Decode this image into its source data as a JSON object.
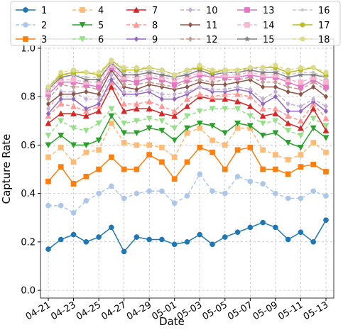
{
  "chart_data": {
    "type": "line",
    "xlabel": "Date",
    "ylabel": "Capture Rate",
    "categories": [
      "04-21",
      null,
      "04-23",
      null,
      "04-25",
      null,
      "04-27",
      null,
      "04-29",
      null,
      "05-01",
      null,
      "05-03",
      null,
      "05-05",
      null,
      "05-07",
      null,
      "05-09",
      null,
      "05-11",
      null,
      "05-13"
    ],
    "ylim": [
      -0.032,
      1.038
    ],
    "yticks": [
      {
        "value": 0,
        "label": "0.0"
      },
      {
        "value": 0.2,
        "label": "0.2"
      },
      {
        "value": 0.4,
        "label": "0.4"
      },
      {
        "value": 0.6,
        "label": "0.6"
      },
      {
        "value": 0.8,
        "label": "0.8"
      },
      {
        "value": 1,
        "label": "1.0"
      }
    ],
    "grid": true,
    "legend": "upper center",
    "series": [
      {
        "name": "1",
        "color": "#1f77b4",
        "marker": "circle",
        "dashed": false,
        "values": [
          0.17,
          0.21,
          0.23,
          0.2,
          0.22,
          0.26,
          0.16,
          0.22,
          0.21,
          0.21,
          0.19,
          0.2,
          0.23,
          0.19,
          0.22,
          0.24,
          0.26,
          0.28,
          0.26,
          0.21,
          0.24,
          0.2,
          0.29
        ]
      },
      {
        "name": "2",
        "color": "#aec7e8",
        "marker": "circle",
        "dashed": true,
        "values": [
          0.35,
          0.35,
          0.32,
          0.37,
          0.4,
          0.43,
          0.38,
          0.4,
          0.41,
          0.41,
          0.36,
          0.39,
          0.48,
          0.41,
          0.4,
          0.47,
          0.45,
          0.44,
          0.4,
          0.38,
          0.38,
          0.41,
          0.39
        ]
      },
      {
        "name": "3",
        "color": "#ff7f0e",
        "marker": "square",
        "dashed": false,
        "values": [
          0.45,
          0.51,
          0.44,
          0.47,
          0.5,
          0.55,
          0.5,
          0.5,
          0.56,
          0.53,
          0.46,
          0.53,
          0.59,
          0.57,
          0.5,
          0.58,
          0.59,
          0.5,
          0.5,
          0.48,
          0.51,
          0.52,
          0.49
        ]
      },
      {
        "name": "4",
        "color": "#ffbb78",
        "marker": "square",
        "dashed": true,
        "values": [
          0.55,
          0.59,
          0.53,
          0.57,
          0.58,
          0.69,
          0.61,
          0.6,
          0.6,
          0.59,
          0.55,
          0.65,
          0.67,
          0.62,
          0.6,
          0.67,
          0.67,
          0.58,
          0.56,
          0.54,
          0.56,
          0.61,
          0.57
        ]
      },
      {
        "name": "5",
        "color": "#2ca02c",
        "marker": "tri-down",
        "dashed": false,
        "values": [
          0.6,
          0.64,
          0.6,
          0.6,
          0.62,
          0.72,
          0.65,
          0.65,
          0.67,
          0.66,
          0.62,
          0.67,
          0.69,
          0.68,
          0.65,
          0.69,
          0.68,
          0.64,
          0.65,
          0.61,
          0.59,
          0.67,
          0.63
        ]
      },
      {
        "name": "6",
        "color": "#98df8a",
        "marker": "tri-down",
        "dashed": true,
        "values": [
          0.64,
          0.7,
          0.67,
          0.66,
          0.69,
          0.75,
          0.69,
          0.7,
          0.71,
          0.7,
          0.67,
          0.72,
          0.74,
          0.75,
          0.75,
          0.75,
          0.72,
          0.69,
          0.7,
          0.66,
          0.64,
          0.71,
          0.68
        ]
      },
      {
        "name": "7",
        "color": "#d62728",
        "marker": "tri-up",
        "dashed": false,
        "values": [
          0.69,
          0.73,
          0.73,
          0.72,
          0.74,
          0.84,
          0.74,
          0.75,
          0.75,
          0.73,
          0.72,
          0.76,
          0.8,
          0.79,
          0.79,
          0.78,
          0.76,
          0.72,
          0.73,
          0.69,
          0.67,
          0.75,
          0.66
        ]
      },
      {
        "name": "8",
        "color": "#ff9896",
        "marker": "tri-up",
        "dashed": true,
        "values": [
          0.72,
          0.77,
          0.76,
          0.74,
          0.76,
          0.86,
          0.77,
          0.77,
          0.78,
          0.76,
          0.74,
          0.79,
          0.81,
          0.8,
          0.81,
          0.81,
          0.8,
          0.75,
          0.75,
          0.72,
          0.7,
          0.77,
          0.71
        ]
      },
      {
        "name": "9",
        "color": "#9467bd",
        "marker": "diamond",
        "dashed": false,
        "values": [
          0.73,
          0.79,
          0.79,
          0.75,
          0.77,
          0.87,
          0.81,
          0.81,
          0.82,
          0.79,
          0.79,
          0.81,
          0.84,
          0.82,
          0.82,
          0.83,
          0.82,
          0.77,
          0.8,
          0.74,
          0.74,
          0.78,
          0.74
        ]
      },
      {
        "name": "10",
        "color": "#c5b0d5",
        "marker": "diamond",
        "dashed": true,
        "values": [
          0.75,
          0.82,
          0.82,
          0.79,
          0.79,
          0.89,
          0.82,
          0.82,
          0.83,
          0.81,
          0.81,
          0.82,
          0.84,
          0.83,
          0.83,
          0.84,
          0.83,
          0.79,
          0.82,
          0.77,
          0.76,
          0.79,
          0.76
        ]
      },
      {
        "name": "11",
        "color": "#8c564b",
        "marker": "diamond",
        "dashed": false,
        "values": [
          0.77,
          0.81,
          0.81,
          0.82,
          0.81,
          0.91,
          0.84,
          0.83,
          0.85,
          0.84,
          0.83,
          0.84,
          0.86,
          0.85,
          0.85,
          0.86,
          0.87,
          0.84,
          0.84,
          0.82,
          0.81,
          0.84,
          0.8
        ]
      },
      {
        "name": "12",
        "color": "#c49c94",
        "marker": "diamond",
        "dashed": true,
        "values": [
          0.79,
          0.85,
          0.84,
          0.84,
          0.83,
          0.92,
          0.85,
          0.85,
          0.86,
          0.85,
          0.84,
          0.86,
          0.87,
          0.86,
          0.87,
          0.87,
          0.88,
          0.86,
          0.86,
          0.84,
          0.83,
          0.86,
          0.83
        ]
      },
      {
        "name": "13",
        "color": "#e377c2",
        "marker": "square",
        "dashed": false,
        "values": [
          0.81,
          0.86,
          0.86,
          0.85,
          0.84,
          0.92,
          0.87,
          0.86,
          0.88,
          0.87,
          0.85,
          0.87,
          0.89,
          0.88,
          0.88,
          0.88,
          0.89,
          0.88,
          0.88,
          0.86,
          0.84,
          0.87,
          0.84
        ]
      },
      {
        "name": "14",
        "color": "#f7b6d2",
        "marker": "square",
        "dashed": true,
        "values": [
          0.82,
          0.87,
          0.87,
          0.86,
          0.86,
          0.93,
          0.88,
          0.88,
          0.89,
          0.88,
          0.87,
          0.88,
          0.9,
          0.88,
          0.89,
          0.89,
          0.9,
          0.89,
          0.89,
          0.87,
          0.86,
          0.88,
          0.86
        ]
      },
      {
        "name": "15",
        "color": "#7f7f7f",
        "marker": "star",
        "dashed": false,
        "values": [
          0.83,
          0.88,
          0.89,
          0.87,
          0.87,
          0.94,
          0.89,
          0.89,
          0.9,
          0.89,
          0.88,
          0.89,
          0.91,
          0.89,
          0.9,
          0.9,
          0.91,
          0.9,
          0.9,
          0.88,
          0.89,
          0.89,
          0.88
        ]
      },
      {
        "name": "16",
        "color": "#c7c7c7",
        "marker": "dot",
        "dashed": true,
        "values": [
          0.83,
          0.89,
          0.89,
          0.88,
          0.88,
          0.94,
          0.9,
          0.9,
          0.91,
          0.9,
          0.88,
          0.9,
          0.92,
          0.9,
          0.9,
          0.9,
          0.92,
          0.91,
          0.91,
          0.89,
          0.9,
          0.9,
          0.88
        ]
      },
      {
        "name": "17",
        "color": "#bcbd22",
        "marker": "hexagon",
        "dashed": false,
        "values": [
          0.84,
          0.89,
          0.9,
          0.9,
          0.89,
          0.95,
          0.91,
          0.91,
          0.92,
          0.91,
          0.89,
          0.91,
          0.92,
          0.9,
          0.91,
          0.91,
          0.92,
          0.92,
          0.92,
          0.9,
          0.91,
          0.92,
          0.89
        ]
      },
      {
        "name": "18",
        "color": "#dbdb8d",
        "marker": "hexagon",
        "dashed": true,
        "values": [
          0.84,
          0.9,
          0.91,
          0.9,
          0.9,
          0.95,
          0.92,
          0.92,
          0.92,
          0.91,
          0.89,
          0.91,
          0.93,
          0.91,
          0.91,
          0.91,
          0.92,
          0.92,
          0.93,
          0.91,
          0.92,
          0.92,
          0.9
        ]
      }
    ]
  }
}
